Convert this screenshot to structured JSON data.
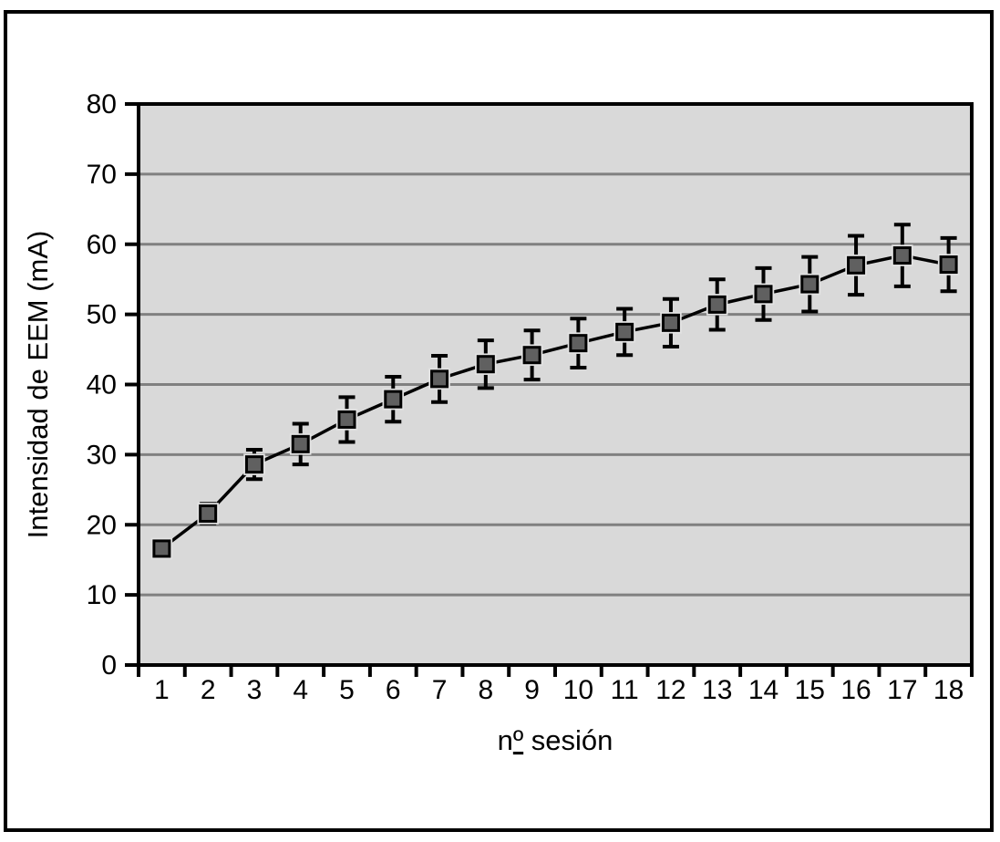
{
  "figure": {
    "background": "#ffffff",
    "frame_border_color": "#000000"
  },
  "chart_data": {
    "type": "line",
    "title": "",
    "xlabel": "nº sesión",
    "ylabel": "Intensidad de EEM (mA)",
    "categories": [
      "1",
      "2",
      "3",
      "4",
      "5",
      "6",
      "7",
      "8",
      "9",
      "10",
      "11",
      "12",
      "13",
      "14",
      "15",
      "16",
      "17",
      "18"
    ],
    "series": [
      {
        "name": "Intensidad de EEM",
        "values": [
          16.6,
          21.6,
          28.6,
          31.5,
          35.0,
          37.9,
          40.8,
          42.9,
          44.2,
          45.9,
          47.5,
          48.8,
          51.4,
          52.9,
          54.3,
          57.0,
          58.4,
          57.1
        ],
        "error_bars": [
          0.5,
          1.4,
          2.1,
          2.9,
          3.2,
          3.2,
          3.3,
          3.4,
          3.5,
          3.5,
          3.3,
          3.4,
          3.6,
          3.7,
          3.9,
          4.2,
          4.4,
          3.8
        ]
      }
    ],
    "ylim": [
      0,
      80
    ],
    "yticks": [
      0,
      10,
      20,
      30,
      40,
      50,
      60,
      70,
      80
    ],
    "grid": "horizontal",
    "legend_position": "none",
    "colors": {
      "plot_background": "#d9d9d9",
      "gridline": "#808080",
      "axis": "#000000",
      "line": "#000000",
      "marker_fill": "#606060",
      "marker_border": "#000000",
      "marker_halo": "#e3e3e3",
      "error_bar": "#000000"
    }
  }
}
